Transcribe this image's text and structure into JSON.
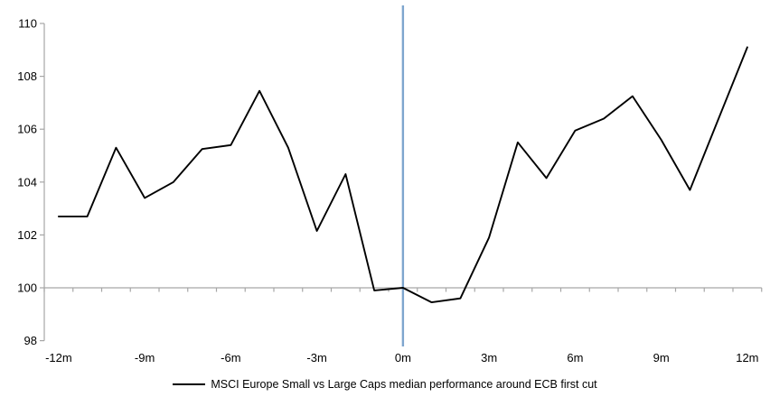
{
  "legend": {
    "label": "MSCI Europe Small vs Large Caps median performance around ECB first cut"
  },
  "chart_data": {
    "type": "line",
    "title": "",
    "xlabel": "",
    "ylabel": "",
    "x_axis": {
      "tick_labels": [
        "-12m",
        "-9m",
        "-6m",
        "-3m",
        "0m",
        "3m",
        "6m",
        "9m",
        "12m"
      ],
      "tick_values": [
        -12,
        -9,
        -6,
        -3,
        0,
        3,
        6,
        9,
        12
      ],
      "xlim": [
        -12.5,
        12.5
      ]
    },
    "y_axis": {
      "ticks": [
        98,
        100,
        102,
        104,
        106,
        108,
        110
      ],
      "ylim": [
        98,
        110
      ]
    },
    "baseline_value": 100,
    "event_line": {
      "x": 0,
      "color": "#7EA6CE"
    },
    "axis_color": "#A6A6A6",
    "line_color": "#000000",
    "grid": false,
    "legend_position": "bottom",
    "series": [
      {
        "name": "MSCI Europe Small vs Large Caps median performance around ECB first cut",
        "x": [
          -12,
          -11,
          -10,
          -9,
          -8,
          -7,
          -6,
          -5,
          -4,
          -3,
          -2,
          -1,
          0,
          1,
          2,
          3,
          4,
          5,
          6,
          7,
          8,
          9,
          10,
          11,
          12
        ],
        "values": [
          102.7,
          102.7,
          105.3,
          103.4,
          104.0,
          105.25,
          105.4,
          107.45,
          105.3,
          102.15,
          104.3,
          99.9,
          100.0,
          99.45,
          99.6,
          101.9,
          105.5,
          104.15,
          105.95,
          106.4,
          107.25,
          105.6,
          103.7,
          106.4,
          109.1
        ]
      }
    ]
  }
}
